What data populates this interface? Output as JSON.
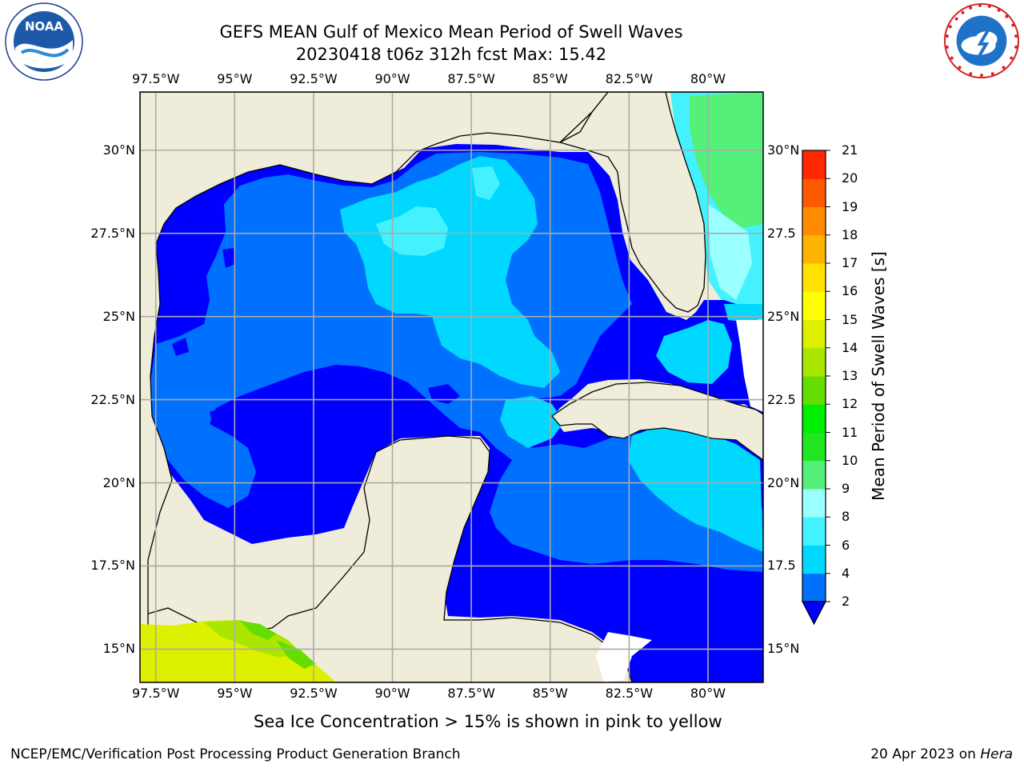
{
  "title": "GEFS MEAN Gulf of Mexico Mean Period of Swell Waves",
  "subtitle": "20230418 t06z 312h fcst   Max: 15.42",
  "map": {
    "lon_ticks": [
      "97.5°W",
      "95°W",
      "92.5°W",
      "90°W",
      "87.5°W",
      "85°W",
      "82.5°W",
      "80°W"
    ],
    "lat_ticks_left": [
      "30°N",
      "27.5°N",
      "25°N",
      "22.5°N",
      "20°N",
      "17.5°N",
      "15°N"
    ],
    "lat_ticks_right": [
      "30°N",
      "27.5",
      "25°N",
      "22.5",
      "20°N",
      "17.5",
      "15°N"
    ],
    "lon_values": [
      -97.5,
      -95,
      -92.5,
      -90,
      -87.5,
      -85,
      -82.5,
      -80
    ],
    "lat_values": [
      30,
      27.5,
      25,
      22.5,
      20,
      17.5,
      15
    ],
    "extent": {
      "lon_min": -98,
      "lon_max": -78.25,
      "lat_min": 14.0,
      "lat_max": 31.75
    },
    "land_color": "#efedd9",
    "gridlines": true
  },
  "colorbar": {
    "label": "Mean Period of Swell Waves [s]",
    "ticks": [
      "2",
      "4",
      "6",
      "8",
      "9",
      "10",
      "11",
      "12",
      "13",
      "14",
      "15",
      "16",
      "17",
      "18",
      "19",
      "20",
      "21"
    ],
    "levels": [
      2,
      4,
      6,
      8,
      9,
      10,
      11,
      12,
      13,
      14,
      15,
      16,
      17,
      18,
      19,
      20,
      21
    ],
    "colors": [
      "#0070ff",
      "#00d8ff",
      "#44f2ff",
      "#99ffff",
      "#55f07a",
      "#22e622",
      "#00ee00",
      "#66dd00",
      "#aae600",
      "#ddf000",
      "#ffff00",
      "#ffe000",
      "#ffb400",
      "#ff8c00",
      "#ff5a00",
      "#ff2800"
    ],
    "under_color": "#0000ff",
    "extend": "min"
  },
  "ice_note": "Sea Ice Concentration > 15% is shown in pink to yellow",
  "footer": {
    "left": "NCEP/EMC/Verification Post Processing Product Generation Branch",
    "date": "20 Apr 2023 on ",
    "machine": "Hera"
  },
  "logos": {
    "left": {
      "icon": "noaa-logo",
      "text": "NOAA"
    },
    "right": {
      "icon": "nws-logo"
    }
  }
}
